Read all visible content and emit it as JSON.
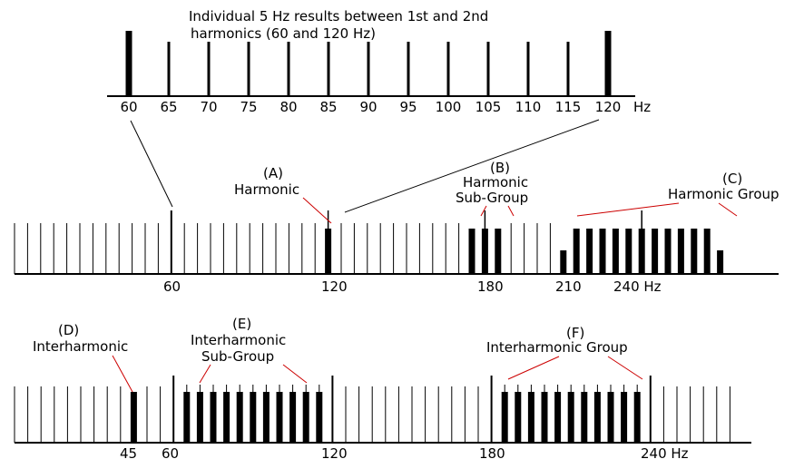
{
  "caption": {
    "line1": "Individual 5 Hz results between 1st and 2nd",
    "line2": "harmonics (60 and 120 Hz)"
  },
  "top_spectrum": {
    "tick_labels": [
      "60",
      "65",
      "70",
      "75",
      "80",
      "85",
      "90",
      "95",
      "100",
      "105",
      "110",
      "115",
      "120"
    ],
    "unit": "Hz"
  },
  "middle_spectrum": {
    "tick_labels": [
      "60",
      "120",
      "180",
      "210",
      "240 Hz"
    ],
    "annotations": {
      "a_letter": "(A)",
      "a_text": "Harmonic",
      "b_letter": "(B)",
      "b_line1": "Harmonic",
      "b_line2": "Sub-Group",
      "c_letter": "(C)",
      "c_text": "Harmonic Group"
    }
  },
  "bottom_spectrum": {
    "tick_labels": [
      "45",
      "60",
      "120",
      "180",
      "240 Hz"
    ],
    "annotations": {
      "d_letter": "(D)",
      "d_text": "Interharmonic",
      "e_letter": "(E)",
      "e_line1": "Interharmonic",
      "e_line2": "Sub-Group",
      "f_letter": "(F)",
      "f_text": "Interharmonic Group"
    }
  },
  "colors": {
    "ink": "#000000",
    "annotation_lines": "#cc0000"
  }
}
